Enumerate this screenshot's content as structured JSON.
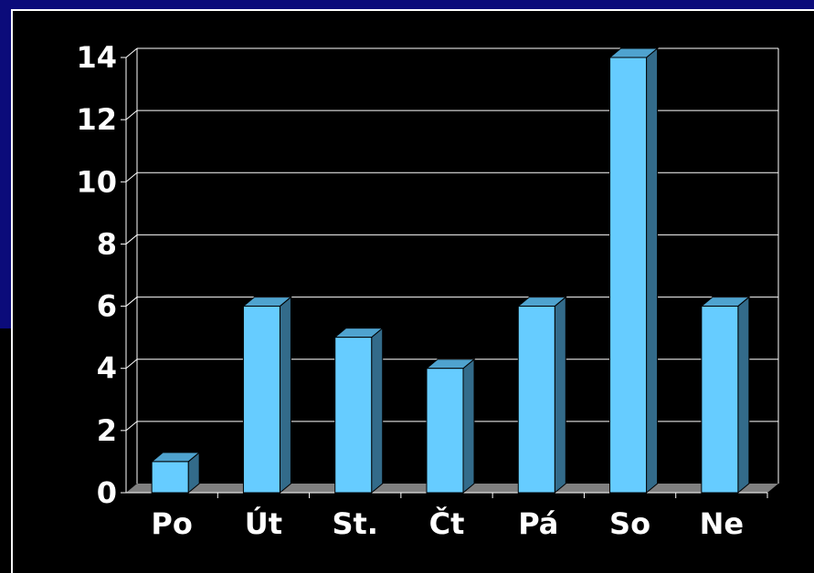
{
  "chart_data": {
    "type": "bar",
    "categories": [
      "Po",
      "Út",
      "St.",
      "Čt",
      "Pá",
      "So",
      "Ne"
    ],
    "values": [
      1,
      6,
      5,
      4,
      6,
      14,
      6
    ],
    "ylim": [
      0,
      14
    ],
    "yticks": [
      0,
      2,
      4,
      6,
      8,
      10,
      12,
      14
    ],
    "grid": true,
    "legend": "none",
    "colors": {
      "bar_front": "#66ccff",
      "bar_side": "#336b8a",
      "bar_top": "#4fa3cf",
      "floor": "#808080",
      "grid": "#ffffff",
      "background": "#000000"
    }
  }
}
